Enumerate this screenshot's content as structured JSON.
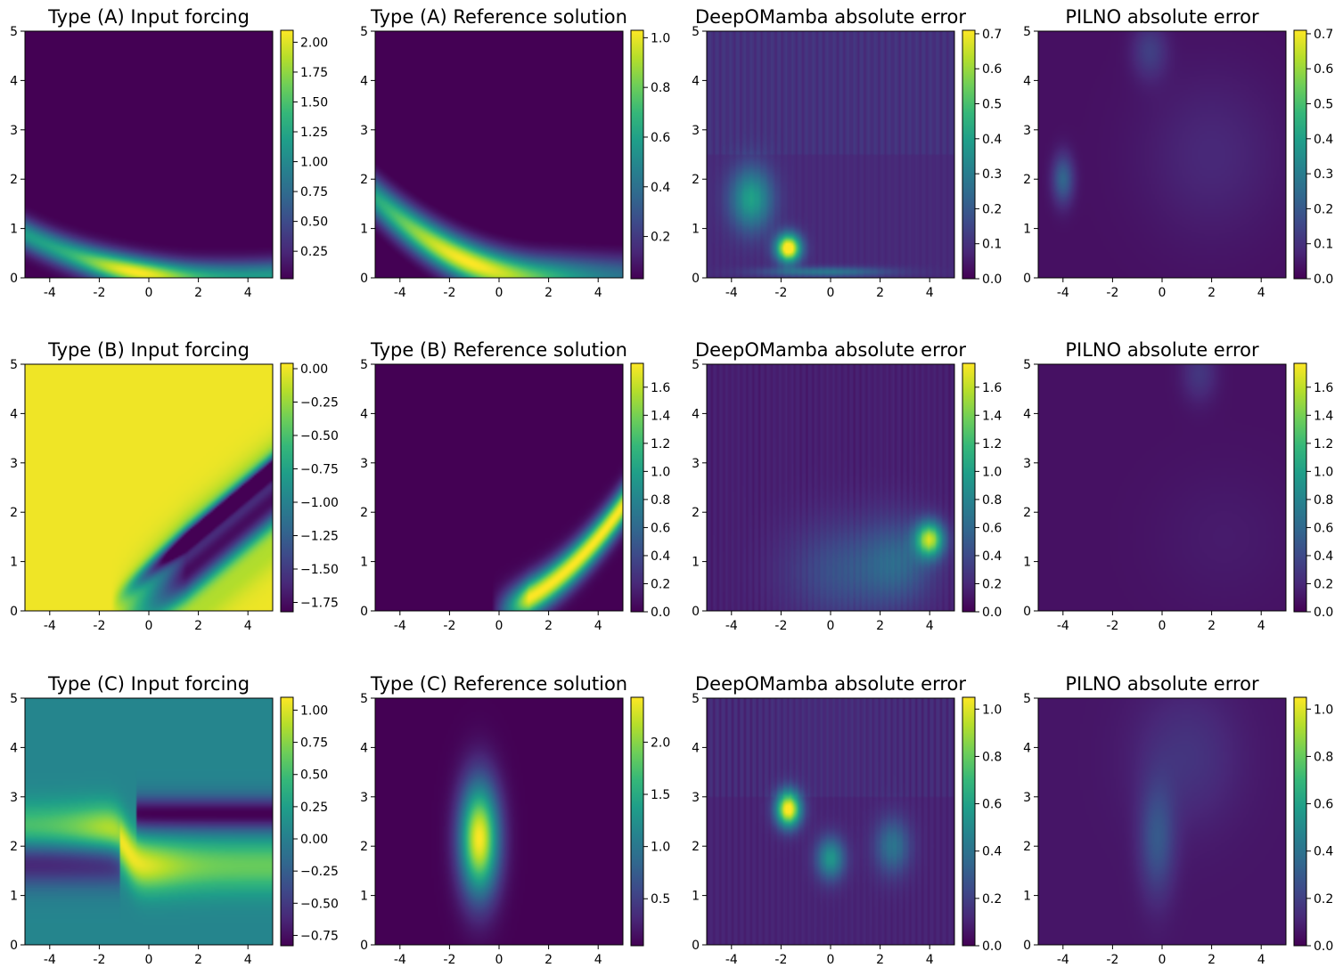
{
  "figure": {
    "colormap": [
      "#440154",
      "#482878",
      "#3e4989",
      "#31688e",
      "#26828e",
      "#1f9e89",
      "#35b779",
      "#6ece58",
      "#b5de2b",
      "#fde725"
    ],
    "axes_color": "#000000"
  },
  "chart_data": [
    {
      "type": "heatmap",
      "title": "Type (A) Input forcing",
      "x_ticks": [
        "-4",
        "-2",
        "0",
        "2",
        "4"
      ],
      "y_ticks": [
        "0",
        "1",
        "2",
        "3",
        "4",
        "5"
      ],
      "xlim": [
        -5,
        5
      ],
      "ylim": [
        0,
        5
      ],
      "grid": false,
      "colorbar": {
        "min": 0.02,
        "max": 2.1,
        "ticks": [
          0.25,
          0.5,
          0.75,
          1.0,
          1.25,
          1.5,
          1.75,
          2.0
        ],
        "tick_labels": [
          "0.25",
          "0.50",
          "0.75",
          "1.00",
          "1.25",
          "1.50",
          "1.75",
          "2.00"
        ]
      },
      "field": "A_forcing"
    },
    {
      "type": "heatmap",
      "title": "Type (A) Reference solution",
      "x_ticks": [
        "-4",
        "-2",
        "0",
        "2",
        "4"
      ],
      "y_ticks": [
        "0",
        "1",
        "2",
        "3",
        "4",
        "5"
      ],
      "xlim": [
        -5,
        5
      ],
      "ylim": [
        0,
        5
      ],
      "grid": false,
      "colorbar": {
        "min": 0.03,
        "max": 1.03,
        "ticks": [
          0.2,
          0.4,
          0.6,
          0.8,
          1.0
        ],
        "tick_labels": [
          "0.2",
          "0.4",
          "0.6",
          "0.8",
          "1.0"
        ]
      },
      "field": "A_reference"
    },
    {
      "type": "heatmap",
      "title": "DeepOMamba absolute error",
      "x_ticks": [
        "-4",
        "-2",
        "0",
        "2",
        "4"
      ],
      "y_ticks": [
        "0",
        "1",
        "2",
        "3",
        "4",
        "5"
      ],
      "xlim": [
        -5,
        5
      ],
      "ylim": [
        0,
        5
      ],
      "grid": false,
      "colorbar": {
        "min": 0.0,
        "max": 0.71,
        "ticks": [
          0.0,
          0.1,
          0.2,
          0.3,
          0.4,
          0.5,
          0.6,
          0.7
        ],
        "tick_labels": [
          "0.0",
          "0.1",
          "0.2",
          "0.3",
          "0.4",
          "0.5",
          "0.6",
          "0.7"
        ]
      },
      "field": "A_deepomamba"
    },
    {
      "type": "heatmap",
      "title": "PILNO absolute error",
      "x_ticks": [
        "-4",
        "-2",
        "0",
        "2",
        "4"
      ],
      "y_ticks": [
        "0",
        "1",
        "2",
        "3",
        "4",
        "5"
      ],
      "xlim": [
        -5,
        5
      ],
      "ylim": [
        0,
        5
      ],
      "grid": false,
      "colorbar": {
        "min": 0.0,
        "max": 0.71,
        "ticks": [
          0.0,
          0.1,
          0.2,
          0.3,
          0.4,
          0.5,
          0.6,
          0.7
        ],
        "tick_labels": [
          "0.0",
          "0.1",
          "0.2",
          "0.3",
          "0.4",
          "0.5",
          "0.6",
          "0.7"
        ]
      },
      "field": "A_pilno"
    },
    {
      "type": "heatmap",
      "title": "Type (B) Input forcing",
      "x_ticks": [
        "-4",
        "-2",
        "0",
        "2",
        "4"
      ],
      "y_ticks": [
        "0",
        "1",
        "2",
        "3",
        "4",
        "5"
      ],
      "xlim": [
        -5,
        5
      ],
      "ylim": [
        0,
        5
      ],
      "grid": false,
      "colorbar": {
        "min": -1.82,
        "max": 0.04,
        "ticks": [
          0.0,
          -0.25,
          -0.5,
          -0.75,
          -1.0,
          -1.25,
          -1.5,
          -1.75
        ],
        "tick_labels": [
          "0.00",
          "−0.25",
          "−0.50",
          "−0.75",
          "−1.00",
          "−1.25",
          "−1.50",
          "−1.75"
        ]
      },
      "field": "B_forcing"
    },
    {
      "type": "heatmap",
      "title": "Type (B) Reference solution",
      "x_ticks": [
        "-4",
        "-2",
        "0",
        "2",
        "4"
      ],
      "y_ticks": [
        "0",
        "1",
        "2",
        "3",
        "4",
        "5"
      ],
      "xlim": [
        -5,
        5
      ],
      "ylim": [
        0,
        5
      ],
      "grid": false,
      "colorbar": {
        "min": 0.0,
        "max": 1.77,
        "ticks": [
          0.0,
          0.2,
          0.4,
          0.6,
          0.8,
          1.0,
          1.2,
          1.4,
          1.6
        ],
        "tick_labels": [
          "0.0",
          "0.2",
          "0.4",
          "0.6",
          "0.8",
          "1.0",
          "1.2",
          "1.4",
          "1.6"
        ]
      },
      "field": "B_reference"
    },
    {
      "type": "heatmap",
      "title": "DeepOMamba absolute error",
      "x_ticks": [
        "-4",
        "-2",
        "0",
        "2",
        "4"
      ],
      "y_ticks": [
        "0",
        "1",
        "2",
        "3",
        "4",
        "5"
      ],
      "xlim": [
        -5,
        5
      ],
      "ylim": [
        0,
        5
      ],
      "grid": false,
      "colorbar": {
        "min": 0.0,
        "max": 1.77,
        "ticks": [
          0.0,
          0.2,
          0.4,
          0.6,
          0.8,
          1.0,
          1.2,
          1.4,
          1.6
        ],
        "tick_labels": [
          "0.0",
          "0.2",
          "0.4",
          "0.6",
          "0.8",
          "1.0",
          "1.2",
          "1.4",
          "1.6"
        ]
      },
      "field": "B_deepomamba"
    },
    {
      "type": "heatmap",
      "title": "PILNO absolute error",
      "x_ticks": [
        "-4",
        "-2",
        "0",
        "2",
        "4"
      ],
      "y_ticks": [
        "0",
        "1",
        "2",
        "3",
        "4",
        "5"
      ],
      "xlim": [
        -5,
        5
      ],
      "ylim": [
        0,
        5
      ],
      "grid": false,
      "colorbar": {
        "min": 0.0,
        "max": 1.77,
        "ticks": [
          0.0,
          0.2,
          0.4,
          0.6,
          0.8,
          1.0,
          1.2,
          1.4,
          1.6
        ],
        "tick_labels": [
          "0.0",
          "0.2",
          "0.4",
          "0.6",
          "0.8",
          "1.0",
          "1.2",
          "1.4",
          "1.6"
        ]
      },
      "field": "B_pilno"
    },
    {
      "type": "heatmap",
      "title": "Type (C) Input forcing",
      "x_ticks": [
        "-4",
        "-2",
        "0",
        "2",
        "4"
      ],
      "y_ticks": [
        "0",
        "1",
        "2",
        "3",
        "4",
        "5"
      ],
      "xlim": [
        -5,
        5
      ],
      "ylim": [
        0,
        5
      ],
      "grid": false,
      "colorbar": {
        "min": -0.83,
        "max": 1.1,
        "ticks": [
          1.0,
          0.75,
          0.5,
          0.25,
          0.0,
          -0.25,
          -0.5,
          -0.75
        ],
        "tick_labels": [
          "1.00",
          "0.75",
          "0.50",
          "0.25",
          "0.00",
          "−0.25",
          "−0.50",
          "−0.75"
        ]
      },
      "field": "C_forcing"
    },
    {
      "type": "heatmap",
      "title": "Type (C) Reference solution",
      "x_ticks": [
        "-4",
        "-2",
        "0",
        "2",
        "4"
      ],
      "y_ticks": [
        "0",
        "1",
        "2",
        "3",
        "4",
        "5"
      ],
      "xlim": [
        -5,
        5
      ],
      "ylim": [
        0,
        5
      ],
      "grid": false,
      "colorbar": {
        "min": 0.05,
        "max": 2.43,
        "ticks": [
          0.5,
          1.0,
          1.5,
          2.0
        ],
        "tick_labels": [
          "0.5",
          "1.0",
          "1.5",
          "2.0"
        ]
      },
      "field": "C_reference"
    },
    {
      "type": "heatmap",
      "title": "DeepOMamba absolute error",
      "x_ticks": [
        "-4",
        "-2",
        "0",
        "2",
        "4"
      ],
      "y_ticks": [
        "0",
        "1",
        "2",
        "3",
        "4",
        "5"
      ],
      "xlim": [
        -5,
        5
      ],
      "ylim": [
        0,
        5
      ],
      "grid": false,
      "colorbar": {
        "min": 0.0,
        "max": 1.05,
        "ticks": [
          0.0,
          0.2,
          0.4,
          0.6,
          0.8,
          1.0
        ],
        "tick_labels": [
          "0.0",
          "0.2",
          "0.4",
          "0.6",
          "0.8",
          "1.0"
        ]
      },
      "field": "C_deepomamba"
    },
    {
      "type": "heatmap",
      "title": "PILNO absolute error",
      "x_ticks": [
        "-4",
        "-2",
        "0",
        "2",
        "4"
      ],
      "y_ticks": [
        "0",
        "1",
        "2",
        "3",
        "4",
        "5"
      ],
      "xlim": [
        -5,
        5
      ],
      "ylim": [
        0,
        5
      ],
      "grid": false,
      "colorbar": {
        "min": 0.0,
        "max": 1.05,
        "ticks": [
          0.0,
          0.2,
          0.4,
          0.6,
          0.8,
          1.0
        ],
        "tick_labels": [
          "0.0",
          "0.2",
          "0.4",
          "0.6",
          "0.8",
          "1.0"
        ]
      },
      "field": "C_pilno"
    }
  ]
}
